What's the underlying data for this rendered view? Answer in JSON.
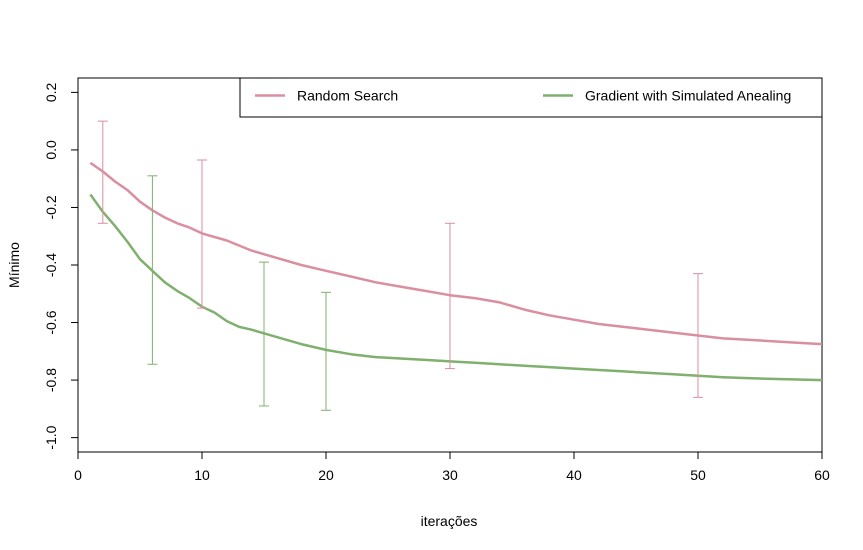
{
  "chart_data": {
    "type": "line",
    "title": "",
    "xlabel": "iterações",
    "ylabel": "Mínimo",
    "xlim": [
      0,
      60
    ],
    "ylim": [
      -1.05,
      0.25
    ],
    "xticks": [
      0,
      10,
      20,
      30,
      40,
      50,
      60
    ],
    "xtick_labels": [
      "0",
      "10",
      "20",
      "30",
      "40",
      "50",
      "60"
    ],
    "yticks": [
      -1.0,
      -0.8,
      -0.6,
      -0.4,
      -0.2,
      0.0,
      0.2
    ],
    "ytick_labels": [
      "-1.0",
      "-0.8",
      "-0.6",
      "-0.4",
      "-0.2",
      "0.0",
      "0.2"
    ],
    "grid": false,
    "legend_position": "top-right",
    "series": [
      {
        "name": "Random Search",
        "color": "#d98fa0",
        "x": [
          1,
          2,
          3,
          4,
          5,
          6,
          7,
          8,
          9,
          10,
          12,
          14,
          16,
          18,
          20,
          22,
          24,
          26,
          28,
          30,
          32,
          34,
          36,
          38,
          40,
          42,
          44,
          46,
          48,
          50,
          52,
          54,
          56,
          58,
          60
        ],
        "y": [
          -0.045,
          -0.075,
          -0.11,
          -0.14,
          -0.18,
          -0.21,
          -0.235,
          -0.255,
          -0.27,
          -0.29,
          -0.315,
          -0.35,
          -0.375,
          -0.4,
          -0.42,
          -0.44,
          -0.46,
          -0.475,
          -0.49,
          -0.505,
          -0.515,
          -0.53,
          -0.555,
          -0.575,
          -0.59,
          -0.605,
          -0.615,
          -0.625,
          -0.635,
          -0.645,
          -0.655,
          -0.66,
          -0.665,
          -0.67,
          -0.675
        ],
        "error_bars": [
          {
            "x": 2,
            "low": -0.255,
            "high": 0.1
          },
          {
            "x": 10,
            "low": -0.55,
            "high": -0.035
          },
          {
            "x": 30,
            "low": -0.76,
            "high": -0.255
          },
          {
            "x": 50,
            "low": -0.86,
            "high": -0.43
          }
        ]
      },
      {
        "name": "Gradient with Simulated Anealing",
        "color": "#7fb06e",
        "x": [
          1,
          2,
          3,
          4,
          5,
          6,
          7,
          8,
          9,
          10,
          11,
          12,
          13,
          14,
          16,
          18,
          20,
          22,
          24,
          26,
          28,
          30,
          32,
          34,
          36,
          38,
          40,
          42,
          44,
          46,
          48,
          50,
          52,
          54,
          56,
          58,
          60
        ],
        "y": [
          -0.155,
          -0.215,
          -0.265,
          -0.32,
          -0.38,
          -0.42,
          -0.46,
          -0.49,
          -0.515,
          -0.545,
          -0.565,
          -0.595,
          -0.615,
          -0.625,
          -0.65,
          -0.675,
          -0.695,
          -0.71,
          -0.72,
          -0.725,
          -0.73,
          -0.735,
          -0.74,
          -0.745,
          -0.75,
          -0.755,
          -0.76,
          -0.765,
          -0.77,
          -0.775,
          -0.78,
          -0.785,
          -0.79,
          -0.793,
          -0.796,
          -0.798,
          -0.8
        ],
        "error_bars": [
          {
            "x": 6,
            "low": -0.745,
            "high": -0.09
          },
          {
            "x": 15,
            "low": -0.89,
            "high": -0.39
          },
          {
            "x": 20,
            "low": -0.905,
            "high": -0.495
          }
        ]
      }
    ]
  }
}
